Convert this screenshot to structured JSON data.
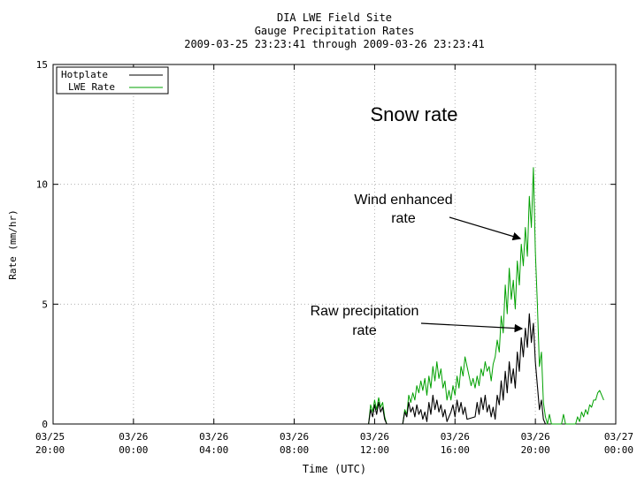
{
  "chart_data": {
    "type": "line",
    "title": [
      "DIA LWE Field Site",
      "Gauge Precipitation Rates",
      "2009-03-25 23:23:41 through 2009-03-26 23:23:41"
    ],
    "xlabel": "Time (UTC)",
    "ylabel": "Rate (mm/hr)",
    "ylim": [
      0,
      15
    ],
    "xlim_hours": [
      0,
      28
    ],
    "grid": true,
    "legend_position": "top-left",
    "x_ticks": [
      {
        "hour": 0,
        "label": [
          "03/25",
          "20:00"
        ]
      },
      {
        "hour": 4,
        "label": [
          "03/26",
          "00:00"
        ]
      },
      {
        "hour": 8,
        "label": [
          "03/26",
          "04:00"
        ]
      },
      {
        "hour": 12,
        "label": [
          "03/26",
          "08:00"
        ]
      },
      {
        "hour": 16,
        "label": [
          "03/26",
          "12:00"
        ]
      },
      {
        "hour": 20,
        "label": [
          "03/26",
          "16:00"
        ]
      },
      {
        "hour": 24,
        "label": [
          "03/26",
          "20:00"
        ]
      },
      {
        "hour": 28,
        "label": [
          "03/27",
          "00:00"
        ]
      }
    ],
    "y_ticks": [
      {
        "value": 0,
        "label": "0"
      },
      {
        "value": 5,
        "label": "5"
      },
      {
        "value": 10,
        "label": "10"
      },
      {
        "value": 15,
        "label": "15"
      }
    ],
    "series": [
      {
        "name": "Hotplate",
        "color": "#000000",
        "points": [
          [
            15.7,
            0
          ],
          [
            15.8,
            0.6
          ],
          [
            15.9,
            0.3
          ],
          [
            16.0,
            0.8
          ],
          [
            16.1,
            0.4
          ],
          [
            16.2,
            0.9
          ],
          [
            16.3,
            0.5
          ],
          [
            16.4,
            0.7
          ],
          [
            16.5,
            0.2
          ],
          [
            16.6,
            0
          ],
          [
            17.4,
            0
          ],
          [
            17.5,
            0.5
          ],
          [
            17.6,
            0.3
          ],
          [
            17.7,
            0.9
          ],
          [
            17.8,
            0.5
          ],
          [
            17.9,
            0.7
          ],
          [
            18.0,
            0.3
          ],
          [
            18.1,
            0.8
          ],
          [
            18.2,
            0.4
          ],
          [
            18.3,
            0.6
          ],
          [
            18.4,
            0.2
          ],
          [
            18.5,
            0.5
          ],
          [
            18.6,
            0.1
          ],
          [
            18.7,
            0.9
          ],
          [
            18.8,
            0.4
          ],
          [
            18.9,
            1.2
          ],
          [
            19.0,
            0.6
          ],
          [
            19.1,
            1.0
          ],
          [
            19.2,
            0.5
          ],
          [
            19.3,
            0.8
          ],
          [
            19.4,
            0.3
          ],
          [
            19.5,
            0.6
          ],
          [
            19.6,
            0.1
          ],
          [
            19.8,
            0.5
          ],
          [
            19.9,
            0.8
          ],
          [
            20.0,
            0.3
          ],
          [
            20.1,
            1.0
          ],
          [
            20.2,
            0.5
          ],
          [
            20.3,
            0.9
          ],
          [
            20.4,
            0.4
          ],
          [
            20.5,
            0.7
          ],
          [
            20.6,
            0.2
          ],
          [
            21.0,
            0.3
          ],
          [
            21.1,
            0.9
          ],
          [
            21.2,
            0.4
          ],
          [
            21.3,
            1.1
          ],
          [
            21.4,
            0.6
          ],
          [
            21.5,
            1.2
          ],
          [
            21.6,
            0.5
          ],
          [
            21.7,
            0.8
          ],
          [
            21.8,
            0.3
          ],
          [
            21.9,
            0.7
          ],
          [
            22.0,
            0.2
          ],
          [
            22.1,
            1.2
          ],
          [
            22.2,
            0.8
          ],
          [
            22.3,
            1.8
          ],
          [
            22.4,
            1.0
          ],
          [
            22.5,
            2.2
          ],
          [
            22.6,
            1.3
          ],
          [
            22.7,
            2.6
          ],
          [
            22.8,
            1.7
          ],
          [
            22.9,
            2.3
          ],
          [
            23.0,
            1.5
          ],
          [
            23.1,
            3.0
          ],
          [
            23.2,
            2.2
          ],
          [
            23.3,
            3.6
          ],
          [
            23.4,
            2.8
          ],
          [
            23.5,
            4.0
          ],
          [
            23.6,
            3.2
          ],
          [
            23.7,
            4.6
          ],
          [
            23.8,
            3.4
          ],
          [
            23.9,
            4.2
          ],
          [
            24.0,
            2.6
          ],
          [
            24.1,
            1.6
          ],
          [
            24.2,
            0.6
          ],
          [
            24.3,
            1.0
          ],
          [
            24.4,
            0.2
          ],
          [
            24.5,
            0
          ]
        ]
      },
      {
        "name": "LWE Rate",
        "color": "#00a000",
        "points": [
          [
            15.7,
            0
          ],
          [
            15.8,
            0.8
          ],
          [
            15.9,
            0.5
          ],
          [
            16.0,
            1.0
          ],
          [
            16.1,
            0.6
          ],
          [
            16.2,
            1.1
          ],
          [
            16.3,
            0.7
          ],
          [
            16.4,
            0.9
          ],
          [
            16.5,
            0.3
          ],
          [
            16.6,
            0
          ],
          [
            17.4,
            0
          ],
          [
            17.5,
            0.6
          ],
          [
            17.6,
            0.4
          ],
          [
            17.7,
            1.2
          ],
          [
            17.8,
            0.9
          ],
          [
            17.9,
            1.3
          ],
          [
            18.0,
            1.0
          ],
          [
            18.1,
            1.6
          ],
          [
            18.2,
            1.3
          ],
          [
            18.3,
            1.8
          ],
          [
            18.4,
            1.4
          ],
          [
            18.5,
            1.9
          ],
          [
            18.6,
            1.2
          ],
          [
            18.7,
            2.0
          ],
          [
            18.8,
            1.5
          ],
          [
            18.9,
            2.4
          ],
          [
            19.0,
            1.8
          ],
          [
            19.1,
            2.6
          ],
          [
            19.2,
            1.9
          ],
          [
            19.3,
            2.3
          ],
          [
            19.4,
            1.5
          ],
          [
            19.5,
            1.8
          ],
          [
            19.6,
            1.0
          ],
          [
            19.7,
            1.4
          ],
          [
            19.8,
            1.0
          ],
          [
            19.9,
            1.6
          ],
          [
            20.0,
            1.2
          ],
          [
            20.1,
            2.0
          ],
          [
            20.2,
            1.5
          ],
          [
            20.3,
            2.4
          ],
          [
            20.4,
            2.0
          ],
          [
            20.5,
            2.8
          ],
          [
            20.6,
            2.4
          ],
          [
            20.7,
            2.0
          ],
          [
            20.8,
            1.6
          ],
          [
            20.9,
            1.9
          ],
          [
            21.0,
            1.5
          ],
          [
            21.1,
            2.0
          ],
          [
            21.2,
            1.6
          ],
          [
            21.3,
            2.3
          ],
          [
            21.4,
            2.0
          ],
          [
            21.5,
            2.6
          ],
          [
            21.6,
            2.2
          ],
          [
            21.7,
            2.4
          ],
          [
            21.8,
            1.8
          ],
          [
            21.9,
            2.5
          ],
          [
            22.0,
            2.8
          ],
          [
            22.1,
            3.5
          ],
          [
            22.2,
            3.0
          ],
          [
            22.3,
            4.5
          ],
          [
            22.4,
            3.8
          ],
          [
            22.5,
            5.8
          ],
          [
            22.6,
            4.6
          ],
          [
            22.7,
            6.5
          ],
          [
            22.8,
            5.2
          ],
          [
            22.9,
            6.0
          ],
          [
            23.0,
            4.8
          ],
          [
            23.1,
            6.8
          ],
          [
            23.2,
            5.8
          ],
          [
            23.3,
            7.5
          ],
          [
            23.4,
            6.6
          ],
          [
            23.5,
            8.2
          ],
          [
            23.6,
            7.0
          ],
          [
            23.7,
            9.5
          ],
          [
            23.8,
            8.2
          ],
          [
            23.9,
            10.7
          ],
          [
            24.0,
            7.2
          ],
          [
            24.1,
            5.0
          ],
          [
            24.2,
            2.4
          ],
          [
            24.3,
            3.0
          ],
          [
            24.4,
            0.9
          ],
          [
            24.5,
            0.3
          ],
          [
            24.6,
            0
          ],
          [
            24.7,
            0.4
          ],
          [
            24.8,
            0
          ],
          [
            25.3,
            0
          ],
          [
            25.4,
            0.4
          ],
          [
            25.5,
            0
          ],
          [
            26.0,
            0
          ],
          [
            26.1,
            0.3
          ],
          [
            26.2,
            0.1
          ],
          [
            26.3,
            0.5
          ],
          [
            26.4,
            0.3
          ],
          [
            26.5,
            0.6
          ],
          [
            26.6,
            0.4
          ],
          [
            26.7,
            0.8
          ],
          [
            26.8,
            0.7
          ],
          [
            26.9,
            1.0
          ],
          [
            27.0,
            1.0
          ],
          [
            27.1,
            1.3
          ],
          [
            27.2,
            1.4
          ],
          [
            27.3,
            1.2
          ],
          [
            27.4,
            1.0
          ]
        ]
      }
    ],
    "annotations": [
      {
        "id": "snow",
        "text": [
          "Snow rate"
        ]
      },
      {
        "id": "wind",
        "text": [
          "Wind enhanced",
          "rate"
        ]
      },
      {
        "id": "raw",
        "text": [
          "Raw precipitation",
          "rate"
        ]
      }
    ]
  }
}
